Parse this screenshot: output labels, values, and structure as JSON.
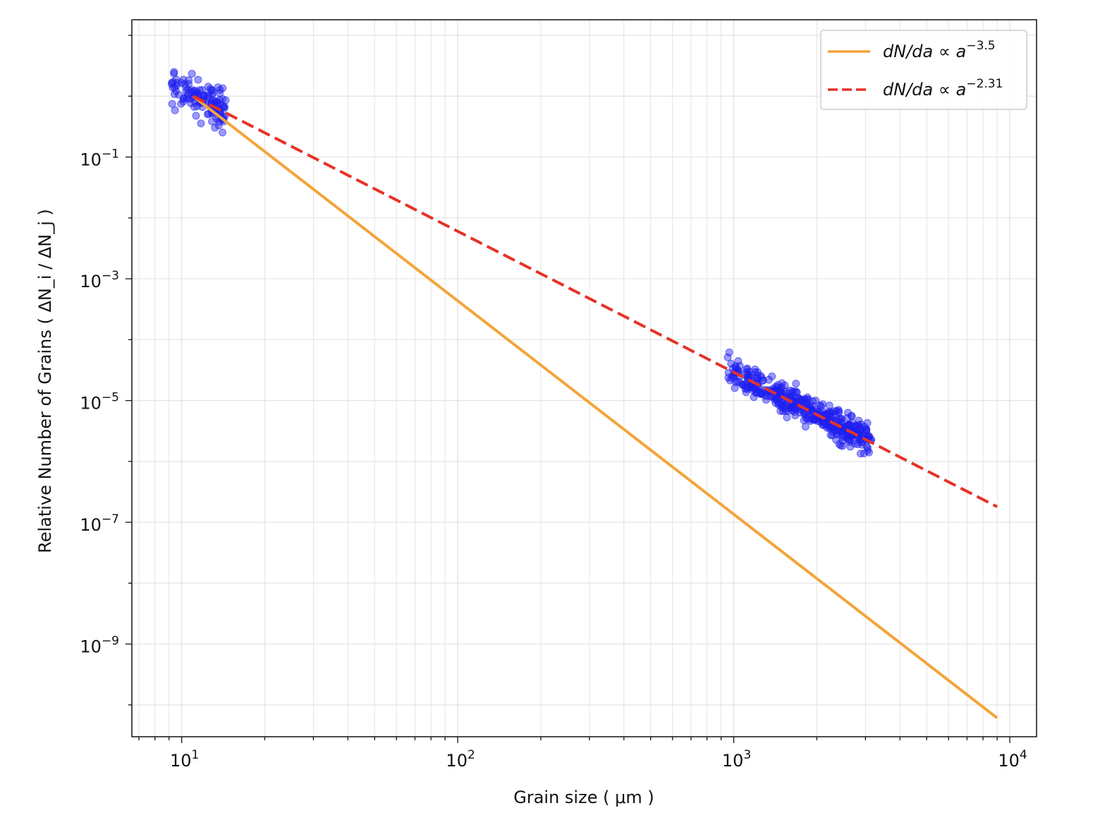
{
  "chart_data": {
    "type": "scatter",
    "title": "",
    "xlabel": "Grain size ( μm )",
    "ylabel": "Relative Number of Grains ( ΔN_i / ΔN_j )",
    "xscale": "log",
    "yscale": "log",
    "xlim": [
      6.6,
      12500
    ],
    "ylim": [
      3e-11,
      18
    ],
    "grid": true,
    "legend_position": "top-right",
    "x_ticks": [
      {
        "value": 10,
        "base": "10",
        "exp": "1"
      },
      {
        "value": 100,
        "base": "10",
        "exp": "2"
      },
      {
        "value": 1000,
        "base": "10",
        "exp": "3"
      },
      {
        "value": 10000,
        "base": "10",
        "exp": "4"
      }
    ],
    "y_ticks": [
      {
        "value": 0.1,
        "base": "10",
        "exp": "−1"
      },
      {
        "value": 0.001,
        "base": "10",
        "exp": "−3"
      },
      {
        "value": 1e-05,
        "base": "10",
        "exp": "−5"
      },
      {
        "value": 1e-07,
        "base": "10",
        "exp": "−7"
      },
      {
        "value": 1e-09,
        "base": "10",
        "exp": "−9"
      }
    ],
    "series": [
      {
        "name": "dN/da ∝ a^-3.5",
        "legend_base": "dN/da ∝ a",
        "legend_exp": "−3.5",
        "kind": "line",
        "style": "solid",
        "color": "#f4a43a",
        "x": [
          11,
          9000
        ],
        "y": [
          1.0,
          6.1e-11
        ]
      },
      {
        "name": "dN/da ∝ a^-2.31",
        "legend_base": "dN/da ∝ a",
        "legend_exp": "−2.31",
        "kind": "line",
        "style": "dashed",
        "color": "#e63228",
        "x": [
          11,
          9000
        ],
        "y": [
          1.0,
          1.8e-07
        ]
      },
      {
        "kind": "scatter",
        "color": "#1f1ff0",
        "clusters": [
          {
            "x_range": [
              9.2,
              14.5
            ],
            "center_fit": "dashed",
            "y_scatter_dex": 0.14,
            "count": 120
          },
          {
            "x_range": [
              950,
              3150
            ],
            "center_fit": "dashed",
            "y_scatter_dex": 0.12,
            "count": 420
          }
        ]
      }
    ]
  }
}
